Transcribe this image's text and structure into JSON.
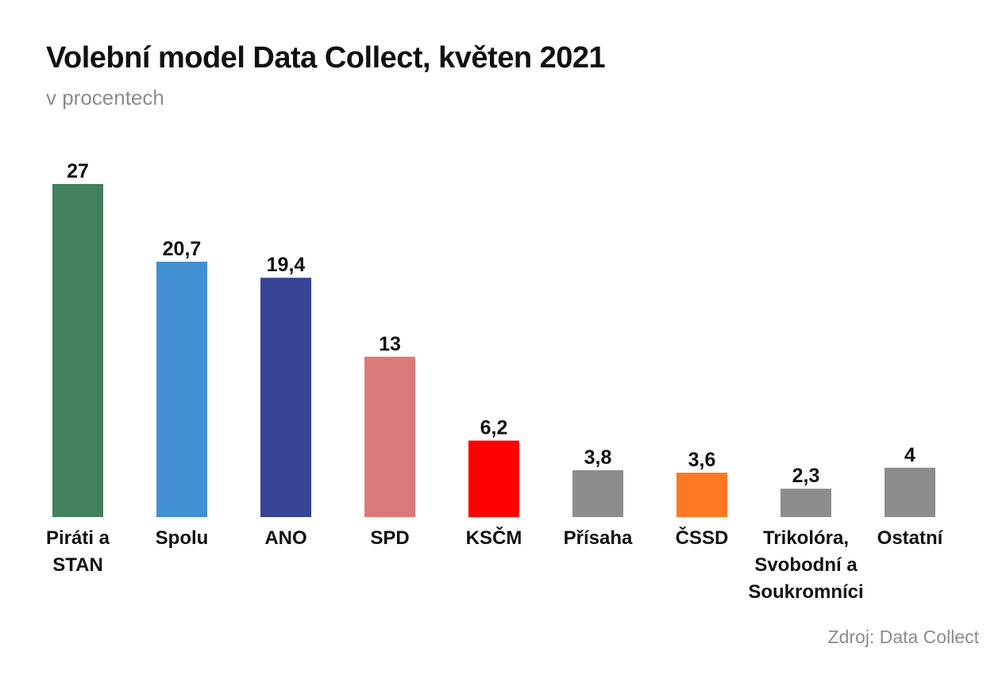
{
  "header": {
    "title": "Volební model Data Collect, květen 2021",
    "subtitle": "v procentech"
  },
  "footer": {
    "source": "Zdroj: Data Collect"
  },
  "chart_data": {
    "type": "bar",
    "title": "Volební model Data Collect, květen 2021",
    "subtitle": "v procentech",
    "xlabel": "",
    "ylabel": "",
    "ylim": [
      0,
      27
    ],
    "grid": false,
    "legend": "none",
    "categories": [
      [
        "Piráti a",
        "STAN"
      ],
      [
        "Spolu"
      ],
      [
        "ANO"
      ],
      [
        "SPD"
      ],
      [
        "KSČM"
      ],
      [
        "Přísaha"
      ],
      [
        "ČSSD"
      ],
      [
        "Trikolóra,",
        "Svobodní a",
        "Soukromníci"
      ],
      [
        "Ostatní"
      ]
    ],
    "values": [
      27,
      20.7,
      19.4,
      13,
      6.2,
      3.8,
      3.6,
      2.3,
      4
    ],
    "value_labels": [
      "27",
      "20,7",
      "19,4",
      "13",
      "6,2",
      "3,8",
      "3,6",
      "2,3",
      "4"
    ],
    "colors": [
      "#43805d",
      "#428fd2",
      "#374495",
      "#d97a78",
      "#ff0000",
      "#8d8d8d",
      "#ff7823",
      "#8d8d8d",
      "#8d8d8d"
    ]
  }
}
